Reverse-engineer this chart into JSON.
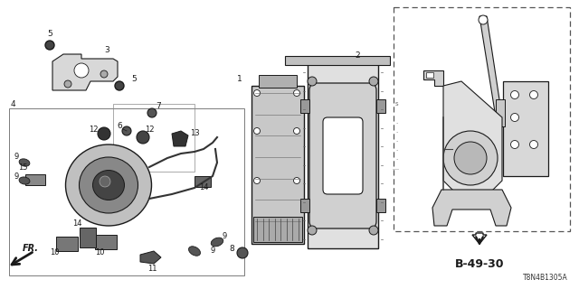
{
  "bg_color": "#ffffff",
  "fig_width": 6.4,
  "fig_height": 3.2,
  "dpi": 100,
  "watermark": "T8N4B1305A",
  "ref_label": "B-49-30",
  "line_color": "#1a1a1a",
  "gray1": "#555555",
  "gray2": "#888888",
  "gray3": "#cccccc",
  "gray4": "#aaaaaa"
}
